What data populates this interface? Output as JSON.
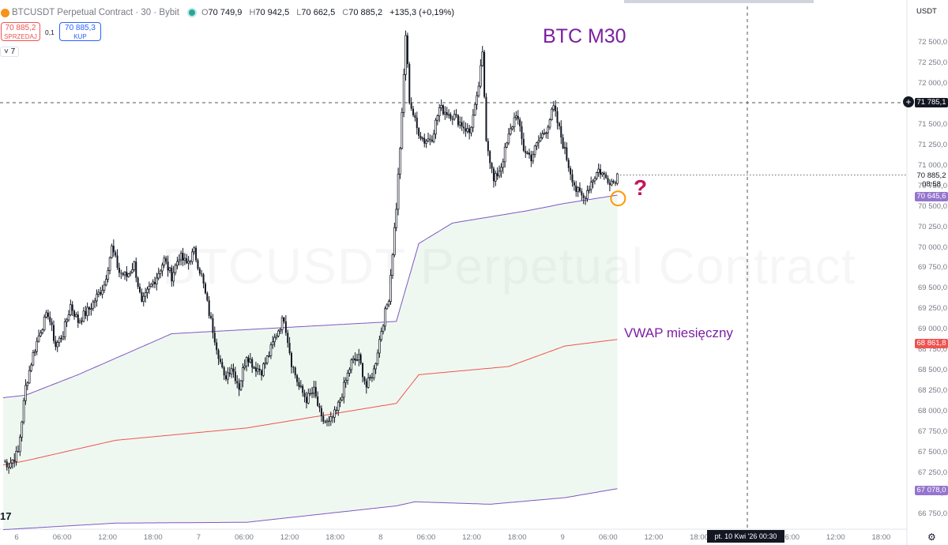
{
  "header": {
    "symbol": "BTCUSDT Perpetual Contract · 30 · Bybit",
    "o_label": "O",
    "o": "70 749,9",
    "h_label": "H",
    "h": "70 942,5",
    "l_label": "L",
    "l": "70 662,5",
    "c_label": "C",
    "c": "70 885,2",
    "change": "+135,3 (+0,19%)"
  },
  "trade": {
    "sell_price": "70 885,2",
    "sell_label": "SPRZEDAJ",
    "spread": "0,1",
    "buy_price": "70 885,3",
    "buy_label": "KUP"
  },
  "indicator_toggle": "7",
  "watermark": "BTCUSDT Perpetual Contract",
  "annotations": {
    "title": "BTC M30",
    "vwap_label": "VWAP miesięczny",
    "question": "?"
  },
  "icons": {
    "settings": "gear-icon",
    "add_alert": "plus-icon",
    "logo": "tradingview-logo"
  },
  "colors": {
    "up": "#131722",
    "down": "#131722",
    "vwap": "#ef5350",
    "band": "#7e57c2",
    "band_fill": "#e8f5e9",
    "annotation": "#7b1fa2",
    "question": "#c2185b",
    "marker": "#ff9800"
  },
  "chart_data": {
    "type": "candlestick",
    "currency": "USDT",
    "ylim": [
      66650,
      72750
    ],
    "y_ticks": [
      "72 500,0",
      "72 250,0",
      "72 000,0",
      "71 750,0",
      "71 500,0",
      "71 250,0",
      "71 000,0",
      "70 750,0",
      "70 500,0",
      "70 250,0",
      "70 000,0",
      "69 750,0",
      "69 500,0",
      "69 250,0",
      "69 000,0",
      "68 750,0",
      "68 500,0",
      "68 250,0",
      "68 000,0",
      "67 750,0",
      "67 500,0",
      "67 250,0",
      "67 000,0",
      "66 750,0"
    ],
    "x_ticks": [
      "6",
      "06:00",
      "12:00",
      "18:00",
      "7",
      "06:00",
      "12:00",
      "18:00",
      "8",
      "06:00",
      "12:00",
      "18:00",
      "9",
      "06:00",
      "12:00",
      "18:00",
      "",
      "06:00",
      "12:00",
      "18:00"
    ],
    "crosshair_price": "71 785,1",
    "crosshair_date": "pt. 10 Kwi '26   00:30",
    "last_price": "70 885,2",
    "countdown": "08:58",
    "upper_band_value": "70 645,6",
    "vwap_value": "68 861,8",
    "lower_band_value": "67 078,0",
    "anchors": [
      [
        0,
        67400
      ],
      [
        3,
        67350
      ],
      [
        8,
        67500
      ],
      [
        12,
        68300
      ],
      [
        16,
        68700
      ],
      [
        20,
        69000
      ],
      [
        24,
        69200
      ],
      [
        28,
        68800
      ],
      [
        32,
        68950
      ],
      [
        36,
        69300
      ],
      [
        40,
        69100
      ],
      [
        46,
        69250
      ],
      [
        50,
        69400
      ],
      [
        54,
        69550
      ],
      [
        58,
        70000
      ],
      [
        62,
        69700
      ],
      [
        66,
        69650
      ],
      [
        70,
        69800
      ],
      [
        74,
        69300
      ],
      [
        78,
        69500
      ],
      [
        82,
        69650
      ],
      [
        86,
        69850
      ],
      [
        90,
        69650
      ],
      [
        94,
        69900
      ],
      [
        98,
        69800
      ],
      [
        102,
        69950
      ],
      [
        106,
        69650
      ],
      [
        110,
        69200
      ],
      [
        114,
        68800
      ],
      [
        118,
        68400
      ],
      [
        122,
        68550
      ],
      [
        126,
        68300
      ],
      [
        130,
        68700
      ],
      [
        134,
        68550
      ],
      [
        138,
        68500
      ],
      [
        142,
        68700
      ],
      [
        146,
        68950
      ],
      [
        150,
        69150
      ],
      [
        154,
        68600
      ],
      [
        158,
        68300
      ],
      [
        162,
        68150
      ],
      [
        166,
        68250
      ],
      [
        170,
        67900
      ],
      [
        174,
        67850
      ],
      [
        178,
        68000
      ],
      [
        182,
        68300
      ],
      [
        186,
        68600
      ],
      [
        190,
        68650
      ],
      [
        194,
        68300
      ],
      [
        198,
        68500
      ],
      [
        202,
        69000
      ],
      [
        206,
        69400
      ],
      [
        210,
        70500
      ],
      [
        213,
        71600
      ],
      [
        215,
        72600
      ],
      [
        217,
        71800
      ],
      [
        221,
        71450
      ],
      [
        225,
        71300
      ],
      [
        229,
        71350
      ],
      [
        233,
        71700
      ],
      [
        237,
        71650
      ],
      [
        241,
        71600
      ],
      [
        245,
        71500
      ],
      [
        249,
        71400
      ],
      [
        253,
        71800
      ],
      [
        256,
        72350
      ],
      [
        258,
        71350
      ],
      [
        262,
        70800
      ],
      [
        266,
        71000
      ],
      [
        270,
        71350
      ],
      [
        274,
        71650
      ],
      [
        278,
        71200
      ],
      [
        282,
        71100
      ],
      [
        286,
        71300
      ],
      [
        290,
        71450
      ],
      [
        294,
        71700
      ],
      [
        298,
        71350
      ],
      [
        302,
        71000
      ],
      [
        306,
        70700
      ],
      [
        310,
        70600
      ],
      [
        314,
        70800
      ],
      [
        318,
        70950
      ],
      [
        322,
        70850
      ],
      [
        326,
        70800
      ],
      [
        328,
        70885
      ]
    ],
    "upper_band": [
      [
        0,
        68170
      ],
      [
        12,
        68200
      ],
      [
        40,
        68450
      ],
      [
        90,
        68950
      ],
      [
        130,
        69000
      ],
      [
        210,
        69100
      ],
      [
        222,
        70050
      ],
      [
        240,
        70300
      ],
      [
        280,
        70450
      ],
      [
        300,
        70540
      ],
      [
        328,
        70640
      ]
    ],
    "vwap": [
      [
        0,
        67350
      ],
      [
        12,
        67400
      ],
      [
        60,
        67650
      ],
      [
        130,
        67800
      ],
      [
        210,
        68100
      ],
      [
        222,
        68450
      ],
      [
        270,
        68550
      ],
      [
        300,
        68800
      ],
      [
        328,
        68880
      ]
    ],
    "lower_band": [
      [
        0,
        66560
      ],
      [
        60,
        66640
      ],
      [
        130,
        66650
      ],
      [
        210,
        66850
      ],
      [
        220,
        66900
      ],
      [
        260,
        66870
      ],
      [
        300,
        66950
      ],
      [
        328,
        67060
      ]
    ]
  }
}
